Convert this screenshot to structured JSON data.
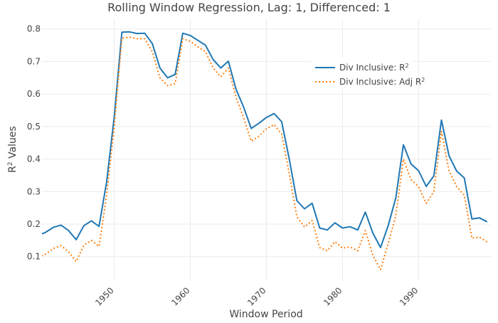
{
  "chart_data": {
    "type": "line",
    "title": "Rolling Window Regression, Lag: 1, Differenced: 1",
    "xlabel": "Window Period",
    "ylabel_main": "R",
    "ylabel_sup": "2",
    "ylabel_rest": " Values",
    "xlim": [
      1940.5,
      1999.5
    ],
    "ylim": [
      0.025,
      0.83
    ],
    "xticks": [
      1950,
      1960,
      1970,
      1980,
      1990
    ],
    "yticks": [
      0.1,
      0.2,
      0.3,
      0.4,
      0.5,
      0.6,
      0.7,
      0.8
    ],
    "grid": true,
    "legend_position": "top-right",
    "x": [
      1940,
      1941,
      1942,
      1943,
      1944,
      1945,
      1946,
      1947,
      1948,
      1949,
      1950,
      1951,
      1952,
      1953,
      1954,
      1955,
      1956,
      1957,
      1958,
      1959,
      1960,
      1961,
      1962,
      1963,
      1964,
      1965,
      1966,
      1967,
      1968,
      1969,
      1970,
      1971,
      1972,
      1973,
      1974,
      1975,
      1976,
      1977,
      1978,
      1979,
      1980,
      1981,
      1982,
      1983,
      1984,
      1985,
      1986,
      1987,
      1988,
      1989,
      1990,
      1991,
      1992,
      1993,
      1994,
      1995,
      1996,
      1997,
      1998,
      1999
    ],
    "series": [
      {
        "name": "Div Inclusive: R",
        "name_sup": "2",
        "color": "#1f77b4",
        "dash": "solid",
        "values": [
          0.165,
          0.175,
          0.19,
          0.197,
          0.18,
          0.152,
          0.195,
          0.21,
          0.193,
          0.33,
          0.53,
          0.79,
          0.791,
          0.786,
          0.787,
          0.755,
          0.68,
          0.65,
          0.66,
          0.787,
          0.78,
          0.765,
          0.75,
          0.706,
          0.68,
          0.701,
          0.615,
          0.56,
          0.494,
          0.51,
          0.528,
          0.54,
          0.515,
          0.4,
          0.272,
          0.247,
          0.264,
          0.188,
          0.182,
          0.204,
          0.188,
          0.192,
          0.182,
          0.237,
          0.172,
          0.128,
          0.195,
          0.28,
          0.444,
          0.385,
          0.364,
          0.316,
          0.348,
          0.52,
          0.41,
          0.363,
          0.342,
          0.216,
          0.219,
          0.207
        ]
      },
      {
        "name": "Div Inclusive: Adj R",
        "name_sup": "2",
        "color": "#ff7f0e",
        "dash": "dot",
        "values": [
          0.098,
          0.108,
          0.125,
          0.134,
          0.115,
          0.085,
          0.135,
          0.15,
          0.131,
          0.29,
          0.5,
          0.772,
          0.775,
          0.77,
          0.77,
          0.73,
          0.65,
          0.626,
          0.632,
          0.77,
          0.762,
          0.745,
          0.73,
          0.68,
          0.653,
          0.68,
          0.59,
          0.527,
          0.455,
          0.47,
          0.493,
          0.506,
          0.477,
          0.355,
          0.222,
          0.191,
          0.211,
          0.128,
          0.118,
          0.146,
          0.126,
          0.13,
          0.118,
          0.18,
          0.103,
          0.06,
          0.14,
          0.225,
          0.4,
          0.337,
          0.315,
          0.264,
          0.3,
          0.485,
          0.364,
          0.315,
          0.289,
          0.157,
          0.16,
          0.145
        ]
      }
    ]
  }
}
